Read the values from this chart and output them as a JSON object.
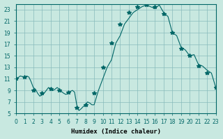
{
  "xlabel": "Humidex (Indice chaleur)",
  "ylabel": "",
  "bg_color": "#c8e8e0",
  "grid_color": "#88bbbb",
  "line_color": "#006666",
  "marker_color": "#006666",
  "xlim": [
    0,
    23
  ],
  "ylim": [
    5,
    24
  ],
  "yticks": [
    5,
    7,
    9,
    11,
    13,
    15,
    17,
    19,
    21,
    23
  ],
  "xticks": [
    0,
    1,
    2,
    3,
    4,
    5,
    6,
    7,
    8,
    9,
    10,
    11,
    12,
    13,
    14,
    15,
    16,
    17,
    18,
    19,
    20,
    21,
    22,
    23
  ],
  "x": [
    0,
    0.25,
    0.5,
    0.75,
    1.0,
    1.25,
    1.5,
    1.75,
    2.0,
    2.25,
    2.5,
    2.75,
    3.0,
    3.25,
    3.5,
    3.75,
    4.0,
    4.25,
    4.5,
    4.75,
    5.0,
    5.25,
    5.5,
    5.75,
    6.0,
    6.25,
    6.5,
    6.75,
    7.0,
    7.25,
    7.5,
    7.75,
    8.0,
    8.25,
    8.5,
    8.75,
    9.0,
    9.5,
    10.0,
    10.5,
    11.0,
    11.5,
    12.0,
    12.5,
    13.0,
    13.5,
    14.0,
    14.5,
    15.0,
    15.5,
    16.0,
    16.5,
    17.0,
    17.5,
    18.0,
    18.5,
    19.0,
    19.5,
    20.0,
    20.5,
    21.0,
    21.5,
    22.0,
    22.5,
    23.0
  ],
  "y": [
    11.0,
    11.2,
    11.5,
    11.4,
    11.2,
    11.5,
    11.3,
    10.5,
    9.5,
    9.2,
    8.5,
    8.0,
    8.2,
    8.5,
    9.0,
    9.5,
    9.3,
    9.0,
    9.2,
    9.5,
    9.2,
    8.8,
    8.5,
    8.3,
    8.5,
    8.8,
    9.0,
    8.7,
    6.5,
    5.5,
    5.8,
    6.2,
    6.5,
    7.0,
    6.8,
    6.5,
    6.5,
    9.0,
    11.0,
    13.0,
    14.3,
    17.2,
    18.5,
    20.5,
    21.5,
    22.5,
    23.0,
    23.5,
    23.8,
    23.5,
    23.2,
    23.8,
    22.5,
    21.8,
    19.0,
    18.5,
    16.5,
    16.0,
    15.0,
    15.2,
    13.5,
    13.2,
    12.5,
    12.0,
    9.5
  ],
  "marker_x": [
    0,
    1,
    2,
    3,
    4,
    5,
    6,
    7,
    8,
    9,
    10,
    11,
    12,
    13,
    14,
    15,
    16,
    17,
    18,
    19,
    20,
    21,
    22,
    23
  ],
  "marker_y": [
    11.0,
    11.3,
    9.0,
    8.5,
    9.3,
    9.0,
    8.7,
    6.0,
    6.5,
    8.5,
    13.0,
    17.2,
    20.5,
    22.5,
    23.5,
    23.8,
    23.5,
    22.2,
    19.0,
    16.2,
    15.0,
    13.2,
    12.0,
    9.5
  ]
}
